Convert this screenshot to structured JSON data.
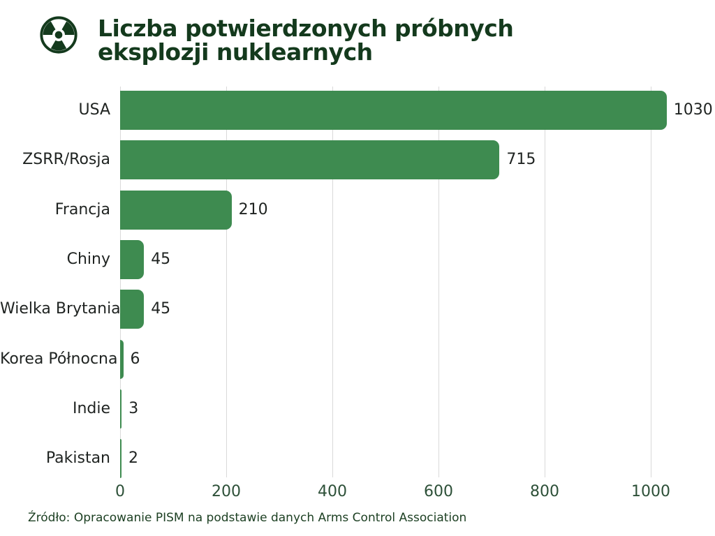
{
  "header": {
    "icon": "radiation-icon",
    "title_line1": "Liczba potwierdzonych próbnych",
    "title_line2": "eksplozji nuklearnych"
  },
  "chart_data": {
    "type": "bar",
    "orientation": "horizontal",
    "title": "Liczba potwierdzonych próbnych eksplozji nuklearnych",
    "categories": [
      "USA",
      "ZSRR/Rosja",
      "Francja",
      "Chiny",
      "Wielka Brytania",
      "Korea Północna",
      "Indie",
      "Pakistan"
    ],
    "values": [
      1030,
      715,
      210,
      45,
      45,
      6,
      3,
      2
    ],
    "value_labels": [
      "1030",
      "715",
      "210",
      "45",
      "45",
      "6",
      "3",
      "2"
    ],
    "xlim": [
      0,
      1000
    ],
    "x_ticks": [
      0,
      200,
      400,
      600,
      800,
      1000
    ],
    "x_tick_labels": [
      "0",
      "200",
      "400",
      "600",
      "800",
      "1000"
    ],
    "grid": true,
    "legend": false,
    "bar_color": "#3e8b50"
  },
  "footer": {
    "source": "Źródło: Opracowanie PISM na podstawie danych Arms Control Association"
  },
  "colors": {
    "title": "#143a1d",
    "bar": "#3e8b50",
    "text": "#1f2321",
    "tick": "#2d5038",
    "grid": "#d9d9d9",
    "background": "#ffffff"
  }
}
